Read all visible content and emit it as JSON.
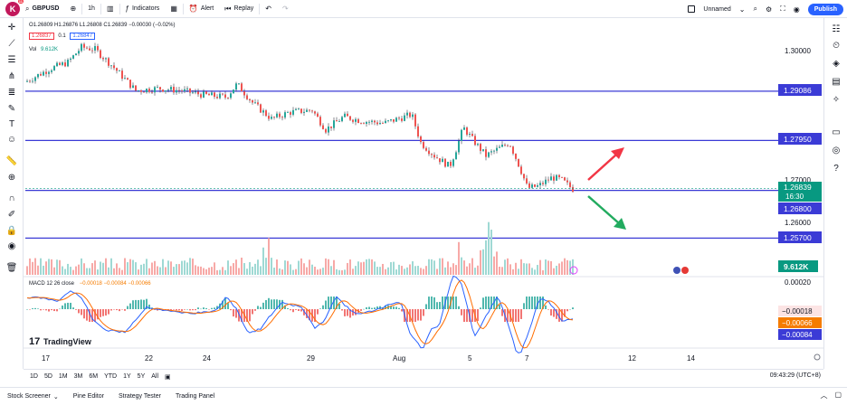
{
  "topbar": {
    "avatar_letter": "K",
    "avatar_badge": "11",
    "symbol": "GBPUSD",
    "interval": "1h",
    "indicators": "Indicators",
    "alert": "Alert",
    "replay": "Replay",
    "layout_name": "Unnamed",
    "publish": "Publish"
  },
  "legend": {
    "ohlc": "O1.26809  H1.26876  L1.26808  C1.26839  −0.00030 (−0.02%)",
    "bid": "1.26837",
    "spread": "0.1",
    "ask": "1.26847",
    "vol_label": "Vol",
    "vol_value": "9.612K",
    "macd_label": "MACD 12 26 close",
    "macd_values": "−0.00018   −0.00084   −0.00066"
  },
  "price_axis": {
    "ticks": [
      "1.30000",
      "1.27000",
      "1.26000",
      "0.00020"
    ],
    "levels": [
      {
        "label": "1.29086",
        "price": 1.29086
      },
      {
        "label": "1.27950",
        "price": 1.2795
      },
      {
        "label": "1.26800",
        "price": 1.268
      },
      {
        "label": "1.25700",
        "price": 1.257
      }
    ],
    "current_price": "1.26839",
    "countdown": "16:30",
    "vol_tag": "9.612K",
    "macd_tags": [
      "−0.00018",
      "−0.00066",
      "−0.00084"
    ]
  },
  "time_axis": {
    "labels": [
      "17",
      "22",
      "24",
      "29",
      "Aug",
      "5",
      "7",
      "12",
      "14"
    ]
  },
  "timeframes": [
    "1D",
    "5D",
    "1M",
    "3M",
    "6M",
    "YTD",
    "1Y",
    "5Y",
    "All"
  ],
  "clock": "09:43:29 (UTC+8)",
  "bottom_tabs": [
    "Stock Screener",
    "Pine Editor",
    "Strategy Tester",
    "Trading Panel"
  ],
  "brand": "TradingView",
  "colors": {
    "up": "#26a69a",
    "down": "#ef5350",
    "level": "#3b3bd6",
    "current": "#089981",
    "arrow_up": "#f23645",
    "arrow_down": "#22ab5f"
  }
}
